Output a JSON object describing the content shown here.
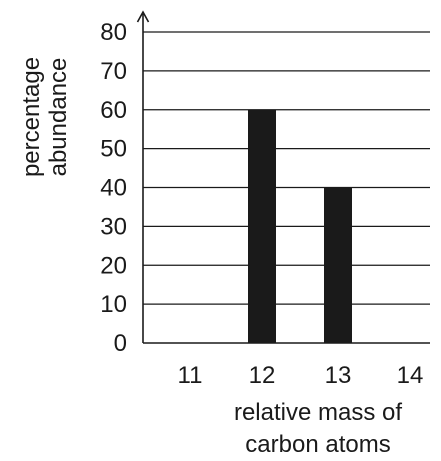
{
  "chart_data": {
    "type": "bar",
    "categories": [
      "11",
      "12",
      "13",
      "14"
    ],
    "values": [
      0,
      60,
      40,
      0
    ],
    "ylabel_lines": [
      "percentage",
      "abundance"
    ],
    "xlabel_lines": [
      "relative mass of",
      "carbon atoms"
    ],
    "yticks": [
      0,
      10,
      20,
      30,
      40,
      50,
      60,
      70,
      80
    ],
    "ylim": [
      0,
      80
    ],
    "grid": true,
    "bar_color": "#1a1a1a",
    "axis_color": "#1a1a1a"
  }
}
